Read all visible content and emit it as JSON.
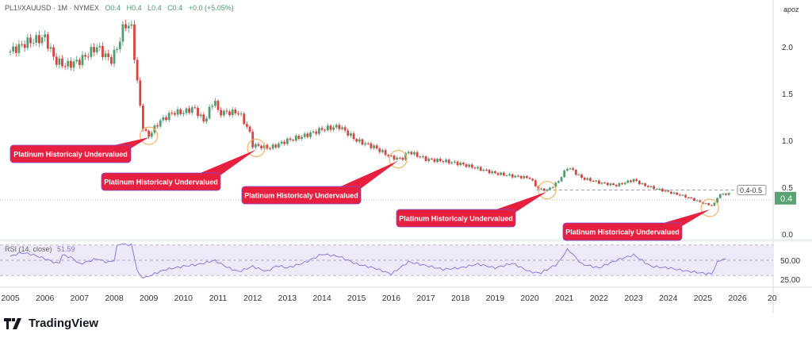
{
  "header": {
    "symbol": "PL1!/XAUUSD · 1M · NYMEX",
    "open": "O0.4",
    "high": "H0.4",
    "low": "L0.4",
    "close": "C0.4",
    "change": "+0.0 (+5.05%)",
    "scale_button": "apoz"
  },
  "rsi": {
    "label": "RSI (14, close)",
    "value": "51.59",
    "ticks": [
      "50.00",
      "25.00"
    ],
    "levels": [
      70,
      50,
      30
    ]
  },
  "colors": {
    "up": "#4f9e6f",
    "down": "#d9443f",
    "rsi_line": "#8e7bdc",
    "rsi_band": "#efeaf9",
    "annotation": "#e8203f",
    "circle": "#f7b35c",
    "price_tag": "#5aa374"
  },
  "chart_data": {
    "type": "candlestick",
    "interval": "1M",
    "xlabel": "",
    "ylabel": "",
    "x_ticks": [
      "2005",
      "2006",
      "2007",
      "2008",
      "2009",
      "2010",
      "2011",
      "2012",
      "2013",
      "2014",
      "2015",
      "2016",
      "2017",
      "2018",
      "2019",
      "2020",
      "2021",
      "2022",
      "2023",
      "2024",
      "2025",
      "2026",
      "20"
    ],
    "y_ticks": [
      "2.0",
      "1.5",
      "1.0",
      "0.5",
      "0.0"
    ],
    "ylim": [
      -0.05,
      2.5
    ],
    "close_keypoints": [
      [
        2005.0,
        1.95
      ],
      [
        2005.5,
        2.05
      ],
      [
        2006.0,
        2.1
      ],
      [
        2006.3,
        1.85
      ],
      [
        2006.6,
        1.8
      ],
      [
        2007.0,
        1.85
      ],
      [
        2007.5,
        2.0
      ],
      [
        2007.9,
        1.85
      ],
      [
        2008.1,
        2.0
      ],
      [
        2008.3,
        2.25
      ],
      [
        2008.5,
        2.2
      ],
      [
        2008.7,
        1.5
      ],
      [
        2008.85,
        1.1
      ],
      [
        2009.0,
        1.05
      ],
      [
        2009.3,
        1.2
      ],
      [
        2009.7,
        1.3
      ],
      [
        2010.0,
        1.3
      ],
      [
        2010.3,
        1.35
      ],
      [
        2010.6,
        1.2
      ],
      [
        2010.9,
        1.45
      ],
      [
        2011.0,
        1.3
      ],
      [
        2011.6,
        1.3
      ],
      [
        2011.9,
        1.1
      ],
      [
        2012.0,
        0.95
      ],
      [
        2012.5,
        0.92
      ],
      [
        2013.0,
        1.0
      ],
      [
        2013.5,
        1.05
      ],
      [
        2014.0,
        1.12
      ],
      [
        2014.5,
        1.15
      ],
      [
        2015.0,
        1.0
      ],
      [
        2015.5,
        0.93
      ],
      [
        2016.0,
        0.82
      ],
      [
        2016.3,
        0.8
      ],
      [
        2016.5,
        0.88
      ],
      [
        2017.0,
        0.8
      ],
      [
        2017.5,
        0.78
      ],
      [
        2018.0,
        0.75
      ],
      [
        2018.5,
        0.7
      ],
      [
        2019.0,
        0.65
      ],
      [
        2019.5,
        0.62
      ],
      [
        2020.0,
        0.6
      ],
      [
        2020.25,
        0.48
      ],
      [
        2020.5,
        0.47
      ],
      [
        2020.8,
        0.55
      ],
      [
        2021.1,
        0.72
      ],
      [
        2021.5,
        0.6
      ],
      [
        2022.0,
        0.55
      ],
      [
        2022.5,
        0.52
      ],
      [
        2023.0,
        0.58
      ],
      [
        2023.3,
        0.52
      ],
      [
        2024.0,
        0.45
      ],
      [
        2024.5,
        0.4
      ],
      [
        2025.0,
        0.33
      ],
      [
        2025.3,
        0.3
      ],
      [
        2025.45,
        0.42
      ],
      [
        2025.7,
        0.43
      ]
    ],
    "rsi_keypoints": [
      [
        2005,
        55
      ],
      [
        2005.3,
        60
      ],
      [
        2005.6,
        58
      ],
      [
        2006.0,
        52
      ],
      [
        2006.4,
        45
      ],
      [
        2006.5,
        57
      ],
      [
        2006.8,
        53
      ],
      [
        2007.0,
        45
      ],
      [
        2007.5,
        52
      ],
      [
        2007.8,
        47
      ],
      [
        2008.0,
        50
      ],
      [
        2008.1,
        72
      ],
      [
        2008.5,
        70
      ],
      [
        2008.7,
        30
      ],
      [
        2008.9,
        27
      ],
      [
        2009.2,
        33
      ],
      [
        2009.5,
        38
      ],
      [
        2010,
        42
      ],
      [
        2010.5,
        45
      ],
      [
        2010.9,
        50
      ],
      [
        2011.3,
        40
      ],
      [
        2011.6,
        35
      ],
      [
        2012,
        42
      ],
      [
        2012.4,
        35
      ],
      [
        2012.7,
        43
      ],
      [
        2013,
        40
      ],
      [
        2013.5,
        47
      ],
      [
        2014,
        58
      ],
      [
        2014.5,
        55
      ],
      [
        2015,
        45
      ],
      [
        2015.5,
        40
      ],
      [
        2016,
        32
      ],
      [
        2016.5,
        48
      ],
      [
        2017,
        43
      ],
      [
        2017.5,
        38
      ],
      [
        2018,
        40
      ],
      [
        2018.5,
        45
      ],
      [
        2019,
        40
      ],
      [
        2019.5,
        46
      ],
      [
        2020,
        35
      ],
      [
        2020.3,
        33
      ],
      [
        2020.8,
        45
      ],
      [
        2021.1,
        65
      ],
      [
        2021.5,
        45
      ],
      [
        2022,
        40
      ],
      [
        2022.5,
        50
      ],
      [
        2023,
        57
      ],
      [
        2023.5,
        42
      ],
      [
        2024,
        40
      ],
      [
        2024.5,
        36
      ],
      [
        2025,
        33
      ],
      [
        2025.25,
        32
      ],
      [
        2025.45,
        50
      ],
      [
        2025.7,
        51.59
      ]
    ],
    "current_price": "0.4",
    "range_label": "0.4-0.5",
    "range_level": 0.47,
    "annotations": [
      {
        "text": "Platinum Historicaly Undervalued",
        "target": [
          2009.0,
          1.05
        ]
      },
      {
        "text": "Platinum Historicaly Undervalued",
        "target": [
          2012.1,
          0.92
        ]
      },
      {
        "text": "Platinum Historicaly Undervalued",
        "target": [
          2016.2,
          0.8
        ]
      },
      {
        "text": "Platinum Historicaly Undervalued",
        "target": [
          2020.5,
          0.47
        ]
      },
      {
        "text": "Platinum Historicaly Undervalued",
        "target": [
          2025.2,
          0.28
        ]
      }
    ]
  },
  "branding": {
    "name": "TradingView"
  }
}
